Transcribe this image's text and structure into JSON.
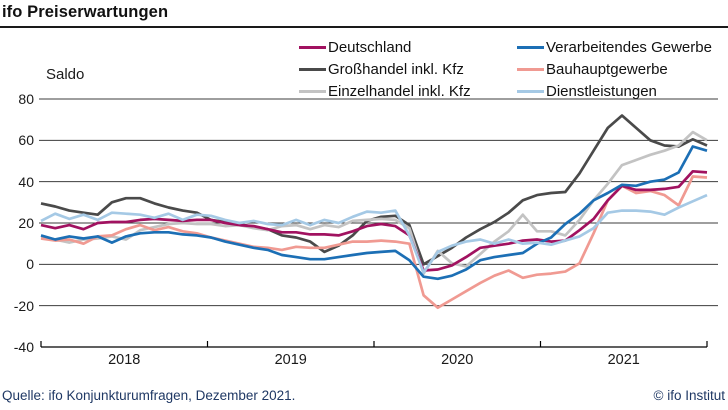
{
  "header": {
    "title": "ifo Preiserwartungen"
  },
  "footer": {
    "source": "Quelle: ifo Konjunkturumfragen, Dezember 2021.",
    "copyright": "© ifo Institut"
  },
  "chart_data": {
    "type": "line",
    "title": "ifo Preiserwartungen",
    "ylabel": "Saldo",
    "xticks": [
      "2018",
      "2019",
      "2020",
      "2021"
    ],
    "yticks": [
      80,
      60,
      40,
      20,
      0,
      -20,
      -40
    ],
    "ylim": [
      -40,
      80
    ],
    "grid": true,
    "legend_position": "top-right",
    "points_per_year": 12,
    "series": [
      {
        "name": "Deutschland",
        "color": "#a11260",
        "values": [
          19,
          17.5,
          19,
          17,
          20,
          20.5,
          20.5,
          21.5,
          22,
          21.5,
          21,
          21.5,
          21.5,
          20,
          19,
          18.5,
          17,
          15.5,
          15.5,
          14.5,
          14.5,
          14,
          16,
          18.5,
          19.5,
          18.5,
          14,
          -3,
          -2.5,
          -0.5,
          3.5,
          8,
          9,
          10,
          11.5,
          12,
          11,
          11.5,
          16.5,
          22,
          31,
          38,
          36,
          36,
          36.5,
          37.5,
          45,
          44.5
        ]
      },
      {
        "name": "Großhandel inkl. Kfz",
        "color": "#4a4a4a",
        "values": [
          29.5,
          28,
          26,
          25,
          24,
          30,
          32,
          32,
          29.5,
          27.5,
          26,
          25,
          21.5,
          20.5,
          19.5,
          18,
          17,
          14,
          13,
          11,
          6,
          9,
          14,
          21,
          23,
          23.5,
          19,
          0,
          4,
          8,
          13,
          17,
          20.5,
          25,
          31,
          33.5,
          34.5,
          35,
          44,
          55,
          66,
          72,
          66,
          60,
          57.5,
          57,
          60.5,
          57.5
        ]
      },
      {
        "name": "Einzelhandel inkl. Kfz",
        "color": "#c3c3c3",
        "values": [
          13,
          12,
          10.5,
          12,
          12.5,
          13.5,
          12,
          16.5,
          18,
          19.5,
          20,
          19.5,
          19.5,
          18.5,
          19,
          17.5,
          16.5,
          18.5,
          19,
          17,
          19,
          18,
          21,
          21.5,
          22,
          21.5,
          17.5,
          -4.5,
          6.5,
          0.5,
          -1,
          5,
          11,
          16,
          24,
          16,
          16,
          14,
          21.5,
          31,
          39,
          48,
          50.5,
          53,
          55,
          57.5,
          64,
          60
        ]
      },
      {
        "name": "Verarbeitendes Gewerbe",
        "color": "#1c6fb5",
        "values": [
          14,
          12,
          13.5,
          12.5,
          13.5,
          10.5,
          13.5,
          15,
          15.5,
          15.5,
          14.5,
          14,
          13,
          11,
          9.5,
          8,
          7,
          4.5,
          3.5,
          2.5,
          2.5,
          3.5,
          4.5,
          5.5,
          6,
          6.5,
          2,
          -6,
          -7,
          -5.5,
          -2.5,
          2,
          3.5,
          4.5,
          5.5,
          10,
          13,
          19.5,
          24.5,
          31,
          34.5,
          38.5,
          38,
          40,
          41,
          44.5,
          57,
          55
        ]
      },
      {
        "name": "Bauhauptgewerbe",
        "color": "#f09a92",
        "values": [
          12.5,
          11.5,
          12,
          10,
          13.5,
          14,
          17,
          19,
          16.5,
          18,
          16,
          15,
          13,
          11.5,
          10,
          8.5,
          8,
          7,
          8.5,
          8,
          8,
          9.5,
          11,
          11,
          11.5,
          11,
          10,
          -15,
          -21,
          -17,
          -13,
          -9,
          -5.5,
          -3,
          -6.5,
          -5,
          -4.5,
          -3.5,
          0.5,
          15,
          31,
          38,
          34.5,
          35.5,
          33.5,
          28.5,
          42.5,
          42
        ]
      },
      {
        "name": "Dienstleistungen",
        "color": "#a5c9e5",
        "values": [
          21,
          24.5,
          22,
          24,
          21.5,
          25,
          24.5,
          24,
          22.5,
          24.5,
          21.5,
          24,
          23.5,
          21.5,
          20,
          21,
          19.5,
          19,
          21.5,
          19,
          21.5,
          20,
          23,
          25.5,
          25,
          26,
          14,
          -4,
          6,
          9,
          11,
          12,
          10,
          12,
          10,
          10.5,
          9.5,
          11.5,
          13.5,
          17.5,
          25,
          26,
          26,
          25.5,
          24,
          27.5,
          30.5,
          33.5
        ]
      }
    ]
  }
}
